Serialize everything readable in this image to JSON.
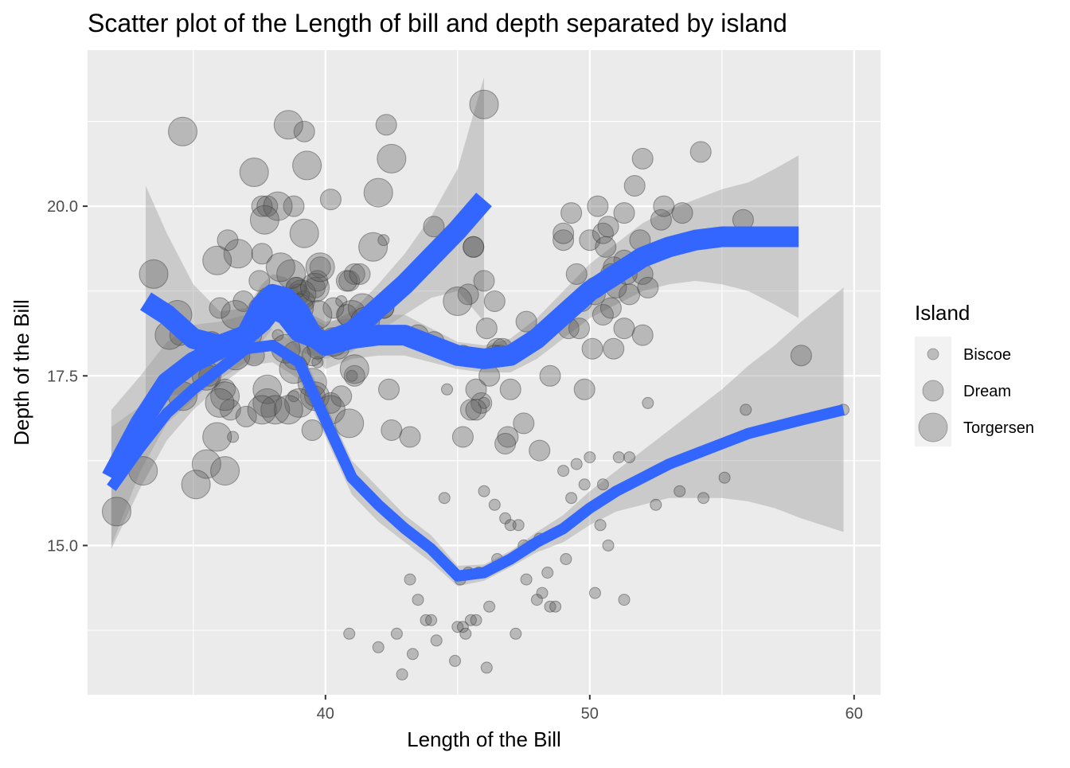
{
  "chart_data": {
    "type": "scatter",
    "title": "Scatter plot of the Length of bill and depth separated by island",
    "xlabel": "Length of the Bill",
    "ylabel": "Depth of the Bill",
    "xlim": [
      31.0,
      61.0
    ],
    "ylim": [
      12.8,
      22.3
    ],
    "x_ticks": [
      40,
      50,
      60
    ],
    "x_tick_labels": [
      "40",
      "50",
      "60"
    ],
    "y_ticks": [
      15.0,
      17.5,
      20.0
    ],
    "y_tick_labels": [
      "15.0",
      "17.5",
      "20.0"
    ],
    "grid": true,
    "legend": {
      "title": "Island",
      "position": "right",
      "entries": [
        "Biscoe",
        "Dream",
        "Torgersen"
      ]
    },
    "colors": {
      "panel": "#ebebeb",
      "grid": "#ffffff",
      "point_fill": "#595959",
      "point_alpha": 0.35,
      "smooth": "#3366ff",
      "ribbon": "#999999",
      "ribbon_alpha": 0.4
    },
    "series": [
      {
        "name": "Biscoe",
        "points": [
          [
            40.9,
            13.7
          ],
          [
            42.0,
            13.5
          ],
          [
            42.7,
            13.7
          ],
          [
            42.9,
            13.1
          ],
          [
            43.2,
            14.5
          ],
          [
            43.3,
            13.4
          ],
          [
            43.5,
            14.2
          ],
          [
            43.8,
            13.9
          ],
          [
            44.0,
            13.9
          ],
          [
            44.2,
            13.6
          ],
          [
            44.5,
            15.7
          ],
          [
            44.9,
            13.3
          ],
          [
            45.0,
            13.8
          ],
          [
            45.1,
            14.5
          ],
          [
            45.2,
            13.8
          ],
          [
            45.3,
            13.7
          ],
          [
            45.4,
            14.6
          ],
          [
            45.5,
            13.9
          ],
          [
            45.7,
            13.9
          ],
          [
            45.8,
            14.6
          ],
          [
            46.0,
            15.8
          ],
          [
            46.1,
            13.2
          ],
          [
            46.2,
            14.1
          ],
          [
            46.4,
            15.6
          ],
          [
            46.5,
            14.8
          ],
          [
            46.8,
            15.4
          ],
          [
            47.0,
            15.3
          ],
          [
            47.3,
            15.3
          ],
          [
            47.5,
            15.0
          ],
          [
            47.6,
            14.5
          ],
          [
            47.8,
            15.0
          ],
          [
            48.1,
            15.1
          ],
          [
            48.2,
            14.3
          ],
          [
            48.4,
            14.6
          ],
          [
            48.5,
            14.1
          ],
          [
            48.7,
            14.1
          ],
          [
            49.0,
            16.1
          ],
          [
            49.1,
            14.8
          ],
          [
            49.3,
            15.7
          ],
          [
            49.5,
            16.2
          ],
          [
            49.8,
            15.9
          ],
          [
            50.0,
            16.3
          ],
          [
            50.2,
            14.3
          ],
          [
            50.4,
            15.3
          ],
          [
            50.5,
            15.9
          ],
          [
            50.7,
            15.0
          ],
          [
            51.1,
            16.3
          ],
          [
            51.3,
            14.2
          ],
          [
            51.5,
            16.3
          ],
          [
            52.2,
            17.1
          ],
          [
            52.5,
            15.6
          ],
          [
            53.4,
            15.8
          ],
          [
            54.3,
            15.7
          ],
          [
            55.1,
            16.0
          ],
          [
            55.9,
            17.0
          ],
          [
            59.6,
            17.0
          ],
          [
            44.6,
            17.3
          ],
          [
            46.0,
            17.1
          ],
          [
            47.2,
            13.7
          ],
          [
            48.0,
            14.2
          ],
          [
            38.2,
            18.1
          ],
          [
            38.8,
            17.2
          ],
          [
            40.6,
            18.6
          ],
          [
            42.2,
            19.5
          ],
          [
            37.8,
            18.3
          ],
          [
            39.7,
            17.7
          ],
          [
            36.5,
            16.6
          ],
          [
            41.0,
            17.5
          ]
        ]
      },
      {
        "name": "Dream",
        "points": [
          [
            39.5,
            16.7
          ],
          [
            39.5,
            17.8
          ],
          [
            40.9,
            18.9
          ],
          [
            36.4,
            17.0
          ],
          [
            42.2,
            18.5
          ],
          [
            37.6,
            19.3
          ],
          [
            39.8,
            19.1
          ],
          [
            36.5,
            18.0
          ],
          [
            40.8,
            18.4
          ],
          [
            36.0,
            18.5
          ],
          [
            44.1,
            19.7
          ],
          [
            37.0,
            16.9
          ],
          [
            39.6,
            18.8
          ],
          [
            41.1,
            19.0
          ],
          [
            37.5,
            18.9
          ],
          [
            41.1,
            17.5
          ],
          [
            40.2,
            17.1
          ],
          [
            39.7,
            18.9
          ],
          [
            36.3,
            19.5
          ],
          [
            45.6,
            19.4
          ],
          [
            46.5,
            17.9
          ],
          [
            50.0,
            19.5
          ],
          [
            51.3,
            19.2
          ],
          [
            45.4,
            18.7
          ],
          [
            52.7,
            19.8
          ],
          [
            45.2,
            17.8
          ],
          [
            46.1,
            18.2
          ],
          [
            51.3,
            18.2
          ],
          [
            46.0,
            18.9
          ],
          [
            51.3,
            19.9
          ],
          [
            46.6,
            17.8
          ],
          [
            51.7,
            20.3
          ],
          [
            47.0,
            17.3
          ],
          [
            52.0,
            18.1
          ],
          [
            45.9,
            17.1
          ],
          [
            50.5,
            19.6
          ],
          [
            50.3,
            20.0
          ],
          [
            58.0,
            17.8
          ],
          [
            46.4,
            18.6
          ],
          [
            49.2,
            18.2
          ],
          [
            42.4,
            17.3
          ],
          [
            48.5,
            17.5
          ],
          [
            43.2,
            16.6
          ],
          [
            50.6,
            19.4
          ],
          [
            46.7,
            17.9
          ],
          [
            52.0,
            19.0
          ],
          [
            50.5,
            18.4
          ],
          [
            49.5,
            19.0
          ],
          [
            46.4,
            17.8
          ],
          [
            52.8,
            20.0
          ],
          [
            54.2,
            20.8
          ],
          [
            51.0,
            18.8
          ],
          [
            49.7,
            18.6
          ],
          [
            47.5,
            16.8
          ],
          [
            47.6,
            18.3
          ],
          [
            52.0,
            20.7
          ],
          [
            46.9,
            16.6
          ],
          [
            53.5,
            19.9
          ],
          [
            49.0,
            19.5
          ],
          [
            46.2,
            17.5
          ],
          [
            50.9,
            19.1
          ],
          [
            45.5,
            17.0
          ],
          [
            50.9,
            17.9
          ],
          [
            50.8,
            18.5
          ],
          [
            50.1,
            17.9
          ],
          [
            49.0,
            19.6
          ],
          [
            51.5,
            18.7
          ],
          [
            49.8,
            17.3
          ],
          [
            48.1,
            16.4
          ],
          [
            51.4,
            19.0
          ],
          [
            45.7,
            17.3
          ],
          [
            50.7,
            19.7
          ],
          [
            42.5,
            16.7
          ],
          [
            52.2,
            18.8
          ],
          [
            45.2,
            16.6
          ],
          [
            49.3,
            19.9
          ],
          [
            50.2,
            18.8
          ],
          [
            45.6,
            19.4
          ],
          [
            51.9,
            19.5
          ],
          [
            46.8,
            16.5
          ],
          [
            45.7,
            17.0
          ],
          [
            55.8,
            19.8
          ],
          [
            43.5,
            18.1
          ],
          [
            49.6,
            18.2
          ],
          [
            50.8,
            19.0
          ],
          [
            50.2,
            18.7
          ],
          [
            37.2,
            18.1
          ],
          [
            39.2,
            21.1
          ],
          [
            38.8,
            20.0
          ],
          [
            42.2,
            18.5
          ],
          [
            40.6,
            17.2
          ],
          [
            40.3,
            18.5
          ],
          [
            35.7,
            18.0
          ],
          [
            41.1,
            18.1
          ],
          [
            38.9,
            18.8
          ],
          [
            37.3,
            17.8
          ],
          [
            41.5,
            18.3
          ],
          [
            35.6,
            17.5
          ],
          [
            40.8,
            18.9
          ],
          [
            39.6,
            17.2
          ],
          [
            44.1,
            18.0
          ],
          [
            37.5,
            18.5
          ],
          [
            42.3,
            21.2
          ],
          [
            39.6,
            18.1
          ],
          [
            34.5,
            18.1
          ],
          [
            41.3,
            19.0
          ],
          [
            36.9,
            18.6
          ],
          [
            38.9,
            18.8
          ],
          [
            39.2,
            18.6
          ],
          [
            37.6,
            20.0
          ],
          [
            38.1,
            18.6
          ],
          [
            40.2,
            20.1
          ],
          [
            37.8,
            20.0
          ],
          [
            39.0,
            18.7
          ],
          [
            36.2,
            17.3
          ],
          [
            39.7,
            17.9
          ],
          [
            40.5,
            17.9
          ]
        ]
      },
      {
        "name": "Torgersen",
        "points": [
          [
            39.1,
            18.7
          ],
          [
            39.5,
            17.4
          ],
          [
            40.3,
            18.0
          ],
          [
            36.7,
            19.3
          ],
          [
            39.3,
            20.6
          ],
          [
            38.9,
            17.8
          ],
          [
            39.2,
            19.6
          ],
          [
            34.1,
            18.1
          ],
          [
            42.0,
            20.2
          ],
          [
            37.8,
            17.1
          ],
          [
            37.8,
            17.3
          ],
          [
            41.1,
            17.6
          ],
          [
            38.6,
            21.2
          ],
          [
            34.6,
            21.1
          ],
          [
            36.6,
            17.8
          ],
          [
            38.7,
            19.0
          ],
          [
            42.5,
            20.7
          ],
          [
            34.4,
            18.4
          ],
          [
            46.0,
            21.5
          ],
          [
            35.9,
            19.2
          ],
          [
            41.8,
            19.4
          ],
          [
            33.5,
            19.0
          ],
          [
            39.7,
            18.4
          ],
          [
            36.6,
            18.4
          ],
          [
            39.6,
            17.2
          ],
          [
            35.5,
            16.2
          ],
          [
            39.0,
            17.1
          ],
          [
            38.5,
            17.9
          ],
          [
            36.2,
            17.2
          ],
          [
            37.3,
            20.5
          ],
          [
            40.2,
            17.0
          ],
          [
            35.9,
            16.6
          ],
          [
            38.1,
            17.0
          ],
          [
            41.4,
            18.5
          ],
          [
            39.0,
            18.5
          ],
          [
            38.3,
            19.1
          ],
          [
            33.1,
            16.1
          ],
          [
            40.9,
            16.8
          ],
          [
            34.6,
            17.2
          ],
          [
            38.2,
            20.0
          ],
          [
            35.1,
            15.9
          ],
          [
            35.5,
            17.5
          ],
          [
            37.7,
            19.8
          ],
          [
            36.0,
            17.1
          ],
          [
            45.0,
            18.6
          ],
          [
            38.6,
            17.0
          ],
          [
            39.6,
            18.8
          ],
          [
            36.2,
            16.1
          ],
          [
            37.9,
            18.6
          ],
          [
            32.1,
            15.5
          ],
          [
            37.6,
            17.0
          ],
          [
            41.0,
            18.4
          ],
          [
            39.8,
            19.1
          ],
          [
            38.8,
            17.6
          ],
          [
            41.5,
            18.3
          ]
        ]
      }
    ],
    "smooth_lines": [
      {
        "x": [
          31.9,
          33.0,
          34.0,
          35.0,
          36.0,
          37.0,
          38.0,
          39.0,
          40.0,
          41.0,
          42.0,
          43.0,
          44.0,
          45.0,
          46.0,
          47.0,
          48.0,
          49.0,
          50.0,
          51.0,
          52.0,
          53.0,
          54.0,
          55.0,
          56.0,
          57.0,
          58.0,
          59.6
        ],
        "y": [
          15.85,
          16.45,
          16.95,
          17.3,
          17.6,
          17.9,
          17.95,
          17.7,
          16.85,
          16.0,
          15.6,
          15.25,
          14.95,
          14.55,
          14.6,
          14.8,
          15.05,
          15.25,
          15.55,
          15.8,
          16.0,
          16.2,
          16.35,
          16.5,
          16.65,
          16.75,
          16.85,
          17.0
        ],
        "band_half_width": [
          0.9,
          0.6,
          0.4,
          0.3,
          0.25,
          0.25,
          0.25,
          0.25,
          0.25,
          0.25,
          0.25,
          0.2,
          0.2,
          0.15,
          0.12,
          0.12,
          0.15,
          0.2,
          0.25,
          0.3,
          0.4,
          0.5,
          0.65,
          0.8,
          1.0,
          1.2,
          1.45,
          1.8
        ],
        "width": 14
      },
      {
        "x": [
          33.2,
          34.0,
          35.0,
          36.0,
          37.0,
          37.6,
          38.0,
          38.5,
          39.0,
          39.5,
          40.0,
          41.0,
          42.0,
          43.0,
          44.0,
          45.0,
          46.0,
          47.0,
          48.0,
          49.0,
          50.0,
          51.0,
          52.0,
          53.0,
          54.0,
          55.0,
          56.0,
          57.0,
          57.9
        ],
        "y": [
          18.6,
          18.4,
          18.05,
          17.95,
          18.1,
          18.55,
          18.7,
          18.65,
          18.45,
          18.1,
          17.95,
          18.05,
          18.1,
          18.1,
          17.95,
          17.8,
          17.75,
          17.8,
          18.05,
          18.4,
          18.75,
          19.0,
          19.25,
          19.4,
          19.5,
          19.55,
          19.55,
          19.55,
          19.55
        ],
        "band_half_width": [
          1.7,
          1.2,
          0.8,
          0.5,
          0.4,
          0.3,
          0.3,
          0.3,
          0.3,
          0.3,
          0.35,
          0.3,
          0.3,
          0.3,
          0.25,
          0.2,
          0.2,
          0.25,
          0.3,
          0.35,
          0.4,
          0.45,
          0.5,
          0.55,
          0.6,
          0.7,
          0.8,
          1.0,
          1.2
        ],
        "width": 26
      },
      {
        "x": [
          31.9,
          33.0,
          34.0,
          35.0,
          36.0,
          37.0,
          37.6,
          38.0,
          38.5,
          39.0,
          40.0,
          41.0,
          42.0,
          43.0,
          44.0,
          45.0,
          46.0
        ],
        "y": [
          16.0,
          16.8,
          17.4,
          17.7,
          17.9,
          18.1,
          18.3,
          18.5,
          18.4,
          18.15,
          18.0,
          18.15,
          18.5,
          18.85,
          19.25,
          19.65,
          20.1
        ],
        "band_half_width": [
          1.0,
          0.7,
          0.6,
          0.55,
          0.4,
          0.3,
          0.3,
          0.3,
          0.3,
          0.3,
          0.25,
          0.3,
          0.35,
          0.45,
          0.6,
          0.9,
          1.8
        ],
        "width": 26
      }
    ]
  }
}
